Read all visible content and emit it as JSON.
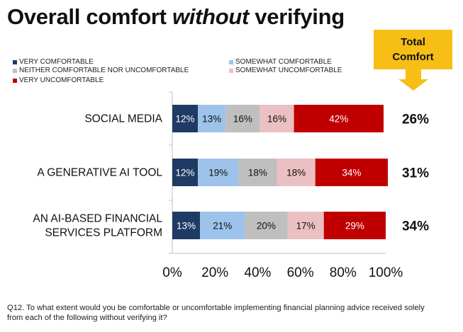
{
  "title": {
    "part1": "Overall comfort ",
    "emphasis": "without",
    "part2": " verifying"
  },
  "total_box": {
    "line1": "Total",
    "line2": "Comfort",
    "color": "#f7be16"
  },
  "footnote": "Q12. To what extent would you be comfortable or uncomfortable implementing financial planning advice received solely from each of the following without verifying it?",
  "chart_data": {
    "type": "bar",
    "orientation": "horizontal",
    "stacked": true,
    "legend_position": "top-left",
    "grid": false,
    "xlim": [
      0,
      100
    ],
    "xticks": [
      "0%",
      "20%",
      "40%",
      "60%",
      "80%",
      "100%"
    ],
    "categories": [
      [
        "SOCIAL MEDIA"
      ],
      [
        "A GENERATIVE AI TOOL"
      ],
      [
        "AN AI-BASED FINANCIAL",
        "SERVICES PLATFORM"
      ]
    ],
    "series": [
      {
        "name": "VERY COMFORTABLE",
        "color": "#1f3b63",
        "text_color": "#ffffff",
        "values": [
          12,
          12,
          13
        ]
      },
      {
        "name": "SOMEWHAT COMFORTABLE",
        "color": "#9dc3ea",
        "text_color": "#111111",
        "values": [
          13,
          19,
          21
        ]
      },
      {
        "name": "NEITHER COMFORTABLE NOR UNCOMFORTABLE",
        "color": "#bfbfbf",
        "text_color": "#111111",
        "values": [
          16,
          18,
          20
        ]
      },
      {
        "name": "SOMEWHAT UNCOMFORTABLE",
        "color": "#ebc0c3",
        "text_color": "#111111",
        "values": [
          16,
          18,
          17
        ]
      },
      {
        "name": "VERY UNCOMFORTABLE",
        "color": "#c00000",
        "text_color": "#ffffff",
        "values": [
          42,
          34,
          29
        ]
      }
    ],
    "value_labels": [
      [
        "12%",
        "13%",
        "16%",
        "16%",
        "42%"
      ],
      [
        "12%",
        "19%",
        "18%",
        "18%",
        "34%"
      ],
      [
        "13%",
        "21%",
        "20%",
        "17%",
        "29%"
      ]
    ],
    "total_comfort": [
      "26%",
      "31%",
      "34%"
    ]
  }
}
